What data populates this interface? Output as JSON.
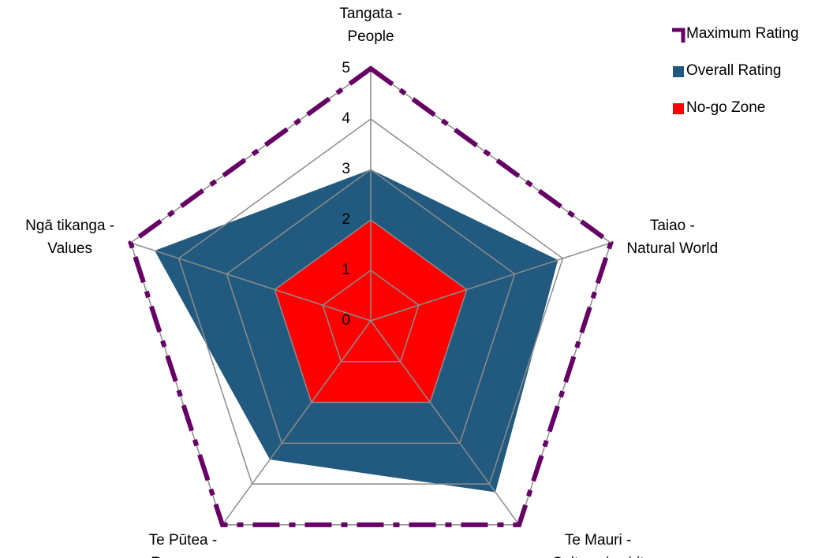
{
  "chart_data": {
    "type": "radar",
    "categories": [
      "Tangata -\nPeople",
      "Taiao -\nNatural World",
      "Te Mauri -\nCulture / spirit",
      "Te Pūtea -\nResource",
      "Ngā tikanga -\nValues"
    ],
    "rlim": [
      0,
      5
    ],
    "rticks": [
      0,
      1,
      2,
      3,
      4,
      5
    ],
    "grid": true,
    "legend": "top-right",
    "series": [
      {
        "name": "Maximum Rating",
        "color": "#660066",
        "style": "dashed",
        "values": [
          5,
          5,
          5,
          5,
          5
        ]
      },
      {
        "name": "Overall Rating",
        "color": "#215a7e",
        "style": "filled",
        "values": [
          3,
          3.9,
          4.2,
          3.4,
          4.5
        ]
      },
      {
        "name": "No-go Zone",
        "color": "#ff0000",
        "style": "filled",
        "values": [
          2,
          2,
          2,
          2,
          2
        ]
      }
    ]
  }
}
